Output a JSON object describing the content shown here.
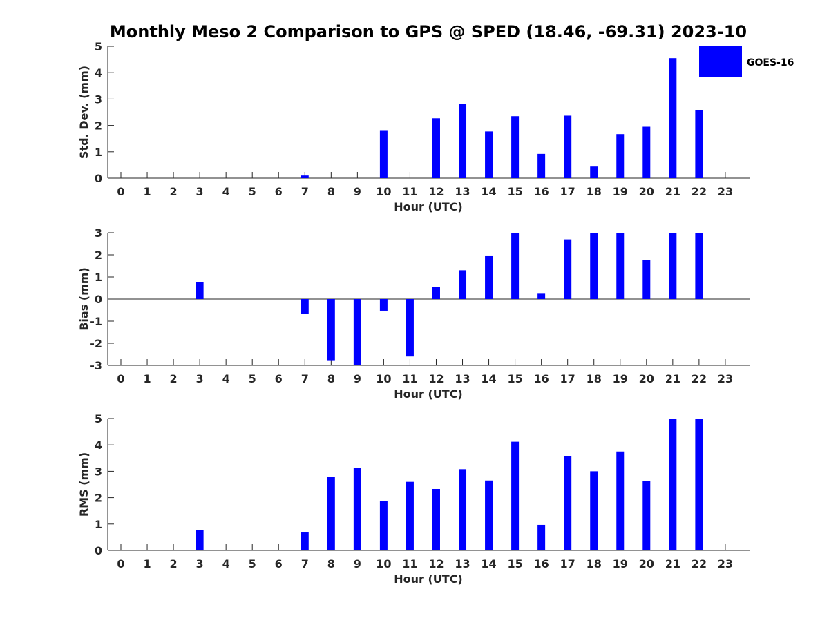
{
  "title": "Monthly Meso 2 Comparison to GPS @ SPED (18.46, -69.31) 2023-10",
  "legend": {
    "label": "GOES-16",
    "color": "#0000ff",
    "placement": "top-right"
  },
  "chart_data": [
    {
      "type": "bar",
      "xlabel": "Hour (UTC)",
      "ylabel": "Std. Dev. (mm)",
      "ylim": [
        0,
        5
      ],
      "yticks": [
        0,
        1,
        2,
        3,
        4,
        5
      ],
      "categories": [
        "0",
        "1",
        "2",
        "3",
        "4",
        "5",
        "6",
        "7",
        "8",
        "9",
        "10",
        "11",
        "12",
        "13",
        "14",
        "15",
        "16",
        "17",
        "18",
        "19",
        "20",
        "21",
        "22",
        "23"
      ],
      "series": [
        {
          "name": "GOES-16",
          "values": [
            null,
            null,
            null,
            0,
            null,
            null,
            null,
            0.1,
            0,
            0,
            1.82,
            0,
            2.27,
            2.82,
            1.77,
            2.35,
            0.92,
            2.37,
            0.44,
            1.67,
            1.95,
            4.55,
            2.58,
            null
          ]
        }
      ],
      "grid": false
    },
    {
      "type": "bar",
      "xlabel": "Hour (UTC)",
      "ylabel": "Bias (mm)",
      "ylim": [
        -3,
        3
      ],
      "yticks": [
        -3,
        -2,
        -1,
        0,
        1,
        2,
        3
      ],
      "categories": [
        "0",
        "1",
        "2",
        "3",
        "4",
        "5",
        "6",
        "7",
        "8",
        "9",
        "10",
        "11",
        "12",
        "13",
        "14",
        "15",
        "16",
        "17",
        "18",
        "19",
        "20",
        "21",
        "22",
        "23"
      ],
      "series": [
        {
          "name": "GOES-16",
          "values": [
            null,
            null,
            null,
            0.78,
            null,
            null,
            null,
            -0.68,
            -2.8,
            -3.0,
            -0.53,
            -2.6,
            0.56,
            1.3,
            1.97,
            3.0,
            0.27,
            2.7,
            3.0,
            3.0,
            1.76,
            3.0,
            3.0,
            null
          ]
        }
      ],
      "grid": false,
      "zero_line": true
    },
    {
      "type": "bar",
      "xlabel": "Hour (UTC)",
      "ylabel": "RMS (mm)",
      "ylim": [
        0,
        5
      ],
      "yticks": [
        0,
        1,
        2,
        3,
        4,
        5
      ],
      "categories": [
        "0",
        "1",
        "2",
        "3",
        "4",
        "5",
        "6",
        "7",
        "8",
        "9",
        "10",
        "11",
        "12",
        "13",
        "14",
        "15",
        "16",
        "17",
        "18",
        "19",
        "20",
        "21",
        "22",
        "23"
      ],
      "series": [
        {
          "name": "GOES-16",
          "values": [
            null,
            null,
            null,
            0.78,
            null,
            null,
            null,
            0.68,
            2.8,
            3.13,
            1.88,
            2.6,
            2.33,
            3.08,
            2.65,
            4.12,
            0.97,
            3.58,
            3.0,
            3.75,
            2.62,
            5.0,
            5.0,
            null
          ]
        }
      ],
      "grid": false
    }
  ]
}
